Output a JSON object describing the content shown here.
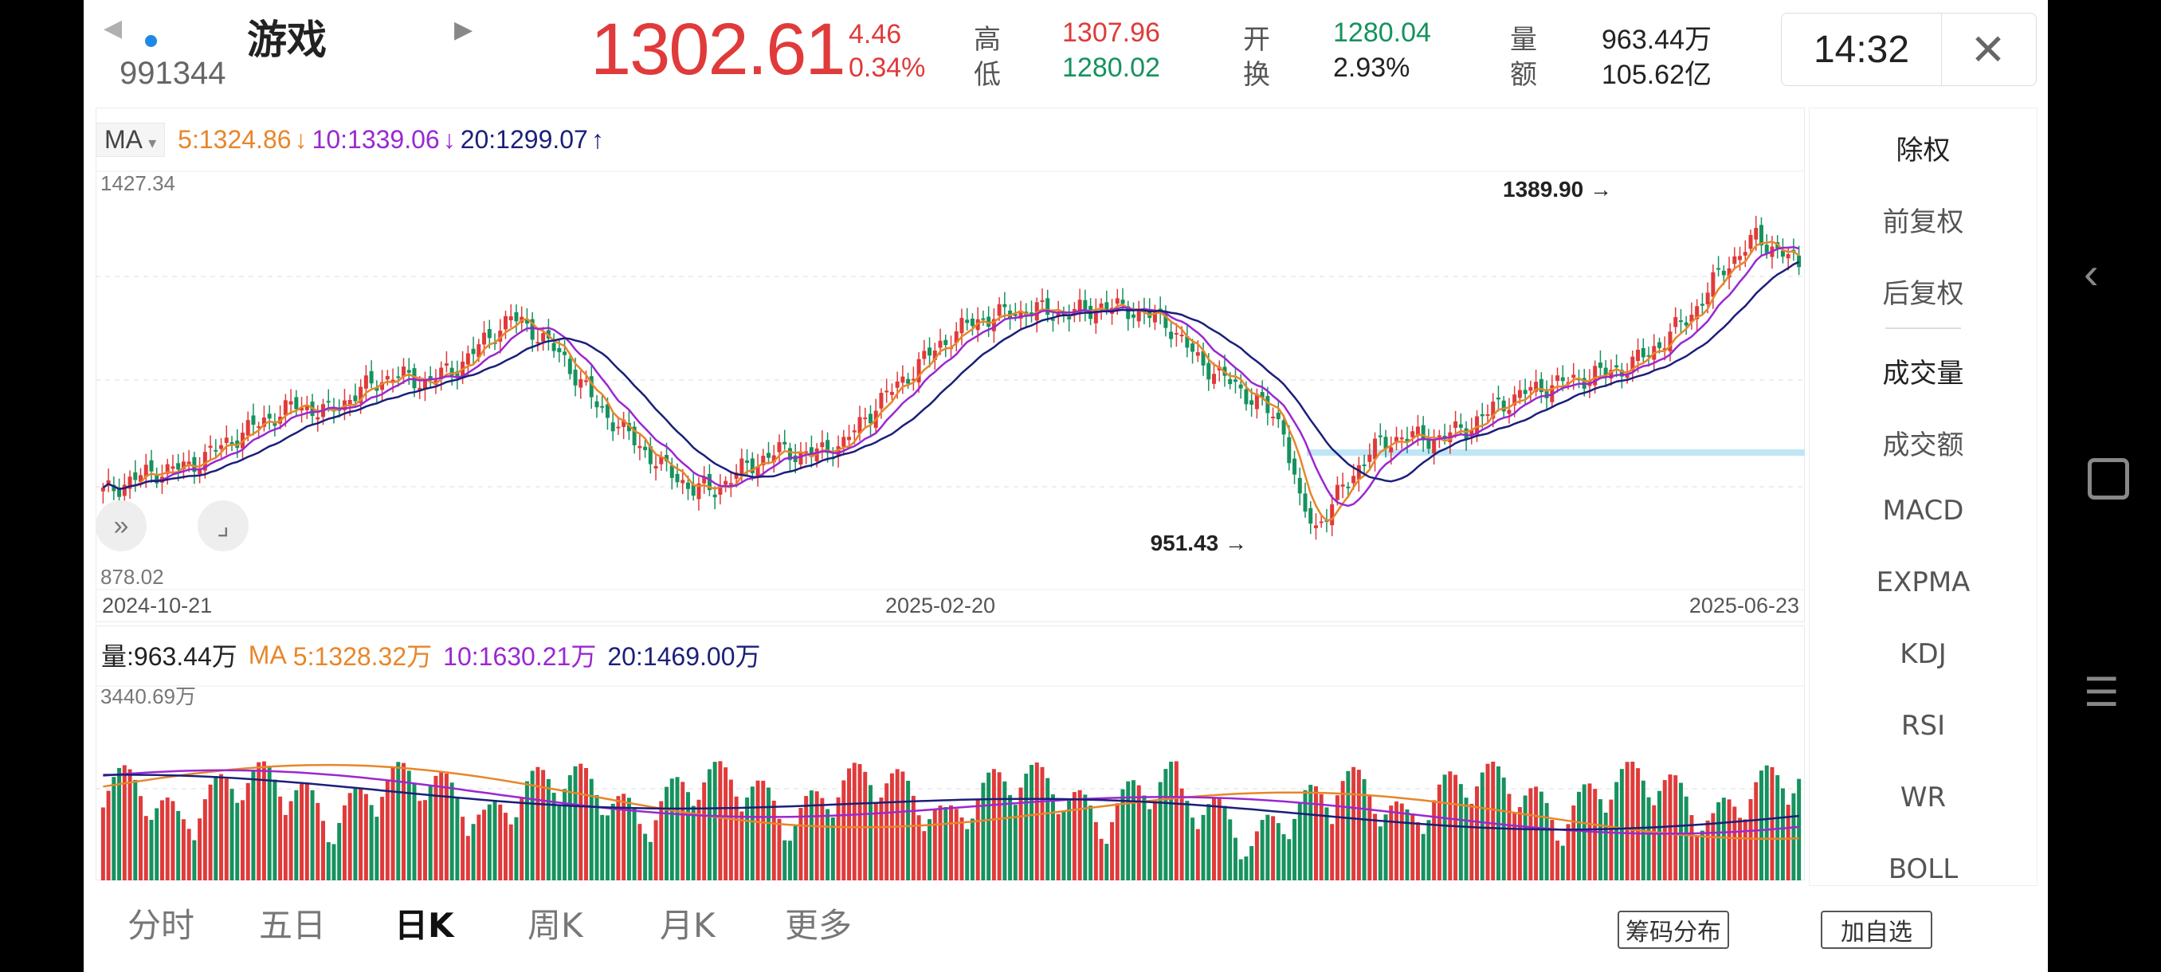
{
  "header": {
    "index_name": "游戏",
    "index_code": "991344",
    "last_price": "1302.61",
    "change": "4.46",
    "change_pct": "0.34%",
    "high_label": "高",
    "high": "1307.96",
    "low_label": "低",
    "low": "1280.02",
    "open_label": "开",
    "open": "1280.04",
    "turnover_label": "换",
    "turnover": "2.93%",
    "volume_label": "量",
    "volume": "963.44万",
    "amount_label": "额",
    "amount": "105.62亿",
    "time": "14:32"
  },
  "ma_legend": {
    "selector": "MA",
    "ma5": "5:1324.86",
    "ma10": "10:1339.06",
    "ma20": "20:1299.07"
  },
  "price_chart": {
    "y_max_label": "1427.34",
    "y_min_label": "878.02",
    "high_marker": "1389.90",
    "low_marker": "951.43",
    "dates": [
      "2024-10-21",
      "2025-02-20",
      "2025-06-23"
    ]
  },
  "volume_legend": {
    "vol": "量:963.44万",
    "ma_label": "MA",
    "ma5": "5:1328.32万",
    "ma10": "10:1630.21万",
    "ma20": "20:1469.00万",
    "y_max_label": "3440.69万"
  },
  "sidebar": {
    "items": [
      "除权",
      "前复权",
      "后复权",
      "成交量",
      "成交额",
      "MACD",
      "EXPMA",
      "KDJ",
      "RSI",
      "WR",
      "BOLL"
    ]
  },
  "tabs": [
    "分时",
    "五日",
    "日K",
    "周K",
    "月K",
    "更多"
  ],
  "buttons": {
    "chips": "筹码分布",
    "add": "加自选"
  },
  "colors": {
    "up": "#e03a3a",
    "down": "#16925e",
    "ma5": "#e8862a",
    "ma10": "#9a28d0",
    "ma20": "#1b1f7a"
  },
  "chart_data": {
    "type": "candlestick",
    "price_range": [
      878.02,
      1427.34
    ],
    "volume_max": 3440.69
  }
}
